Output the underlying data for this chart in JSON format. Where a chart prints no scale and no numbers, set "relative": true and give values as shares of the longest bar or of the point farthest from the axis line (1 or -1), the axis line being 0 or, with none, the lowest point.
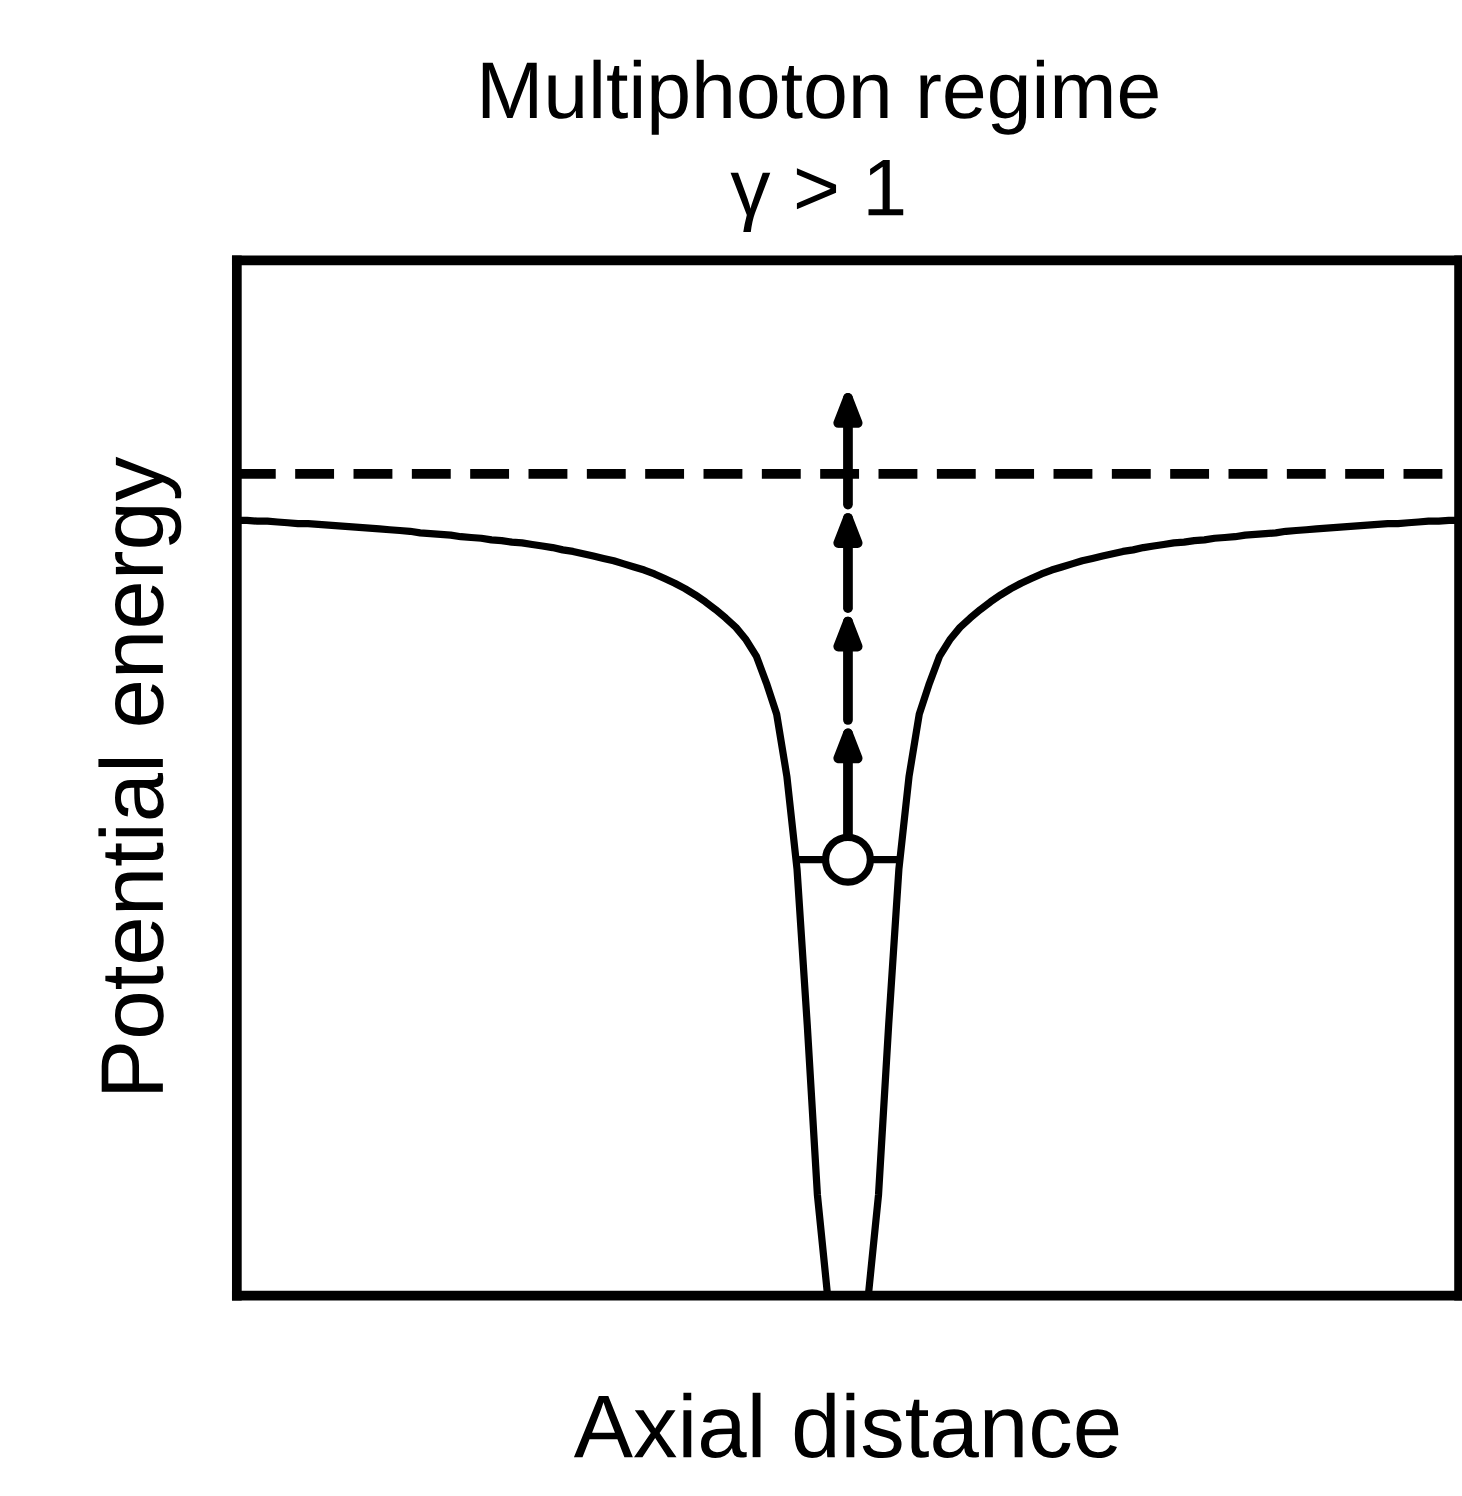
{
  "chart_data": {
    "type": "line",
    "title": "Multiphoton regime",
    "subtitle": "γ > 1",
    "xlabel": "Axial distance",
    "ylabel": "Potential energy",
    "relative": true,
    "categories": [
      null,
      null,
      null,
      null,
      null,
      null,
      null,
      null,
      null,
      null,
      null,
      null,
      null,
      null,
      null,
      null,
      null,
      null,
      null,
      null,
      null,
      null,
      null,
      null,
      null,
      null,
      null,
      null,
      null,
      null,
      null,
      null,
      null,
      null,
      null,
      null,
      null,
      null,
      null,
      null,
      null,
      null,
      null,
      null,
      null,
      null,
      null,
      null,
      null,
      null,
      null,
      null,
      null,
      null,
      null,
      null,
      null,
      null,
      null,
      null,
      null,
      null,
      null,
      null,
      null,
      null,
      null,
      null,
      null,
      null,
      null,
      null,
      null,
      null,
      null,
      null,
      null,
      null,
      null,
      null,
      null,
      null,
      null,
      null,
      null,
      null,
      null,
      null,
      null,
      null,
      null,
      null,
      null,
      null,
      null,
      null,
      null,
      null,
      null,
      null,
      null,
      null,
      null,
      null,
      null,
      null,
      null,
      null,
      null,
      null,
      null,
      null,
      null,
      null,
      null,
      null,
      null,
      null,
      null,
      null,
      null
    ],
    "series": [
      {
        "color": "#000000",
        "marker": "none",
        "line_style": "solid",
        "values": [
          1,
          1,
          0.999,
          0.999,
          0.998,
          0.997,
          0.996,
          0.996,
          0.995,
          0.994,
          0.993,
          0.992,
          0.991,
          0.99,
          0.989,
          0.988,
          0.987,
          0.986,
          0.984,
          0.983,
          0.982,
          0.981,
          0.979,
          0.978,
          0.977,
          0.975,
          0.974,
          0.972,
          0.971,
          0.969,
          0.967,
          0.965,
          0.962,
          0.96,
          0.957,
          0.954,
          0.951,
          0.948,
          0.944,
          0.94,
          0.936,
          0.931,
          0.925,
          0.919,
          0.912,
          0.904,
          0.895,
          0.885,
          0.874,
          0.862,
          0.846,
          0.825,
          0.79,
          0.75,
          0.67,
          0.55,
          0.35,
          0.13,
          0,
          0,
          0,
          0,
          0,
          0.13,
          0.35,
          0.55,
          0.67,
          0.75,
          0.79,
          0.825,
          0.846,
          0.862,
          0.874,
          0.885,
          0.895,
          0.904,
          0.912,
          0.919,
          0.925,
          0.931,
          0.936,
          0.94,
          0.944,
          0.948,
          0.951,
          0.954,
          0.957,
          0.96,
          0.962,
          0.965,
          0.967,
          0.969,
          0.971,
          0.972,
          0.974,
          0.975,
          0.977,
          0.978,
          0.979,
          0.981,
          0.982,
          0.983,
          0.984,
          0.986,
          0.987,
          0.988,
          0.989,
          0.99,
          0.991,
          0.992,
          0.993,
          0.994,
          0.995,
          0.996,
          0.996,
          0.997,
          0.998,
          0.999,
          0.999,
          1,
          1
        ]
      }
    ],
    "ref_lines": [
      {
        "axis": "y",
        "value": 1.06,
        "color": "#000000",
        "line_style": "dashed"
      }
    ]
  }
}
